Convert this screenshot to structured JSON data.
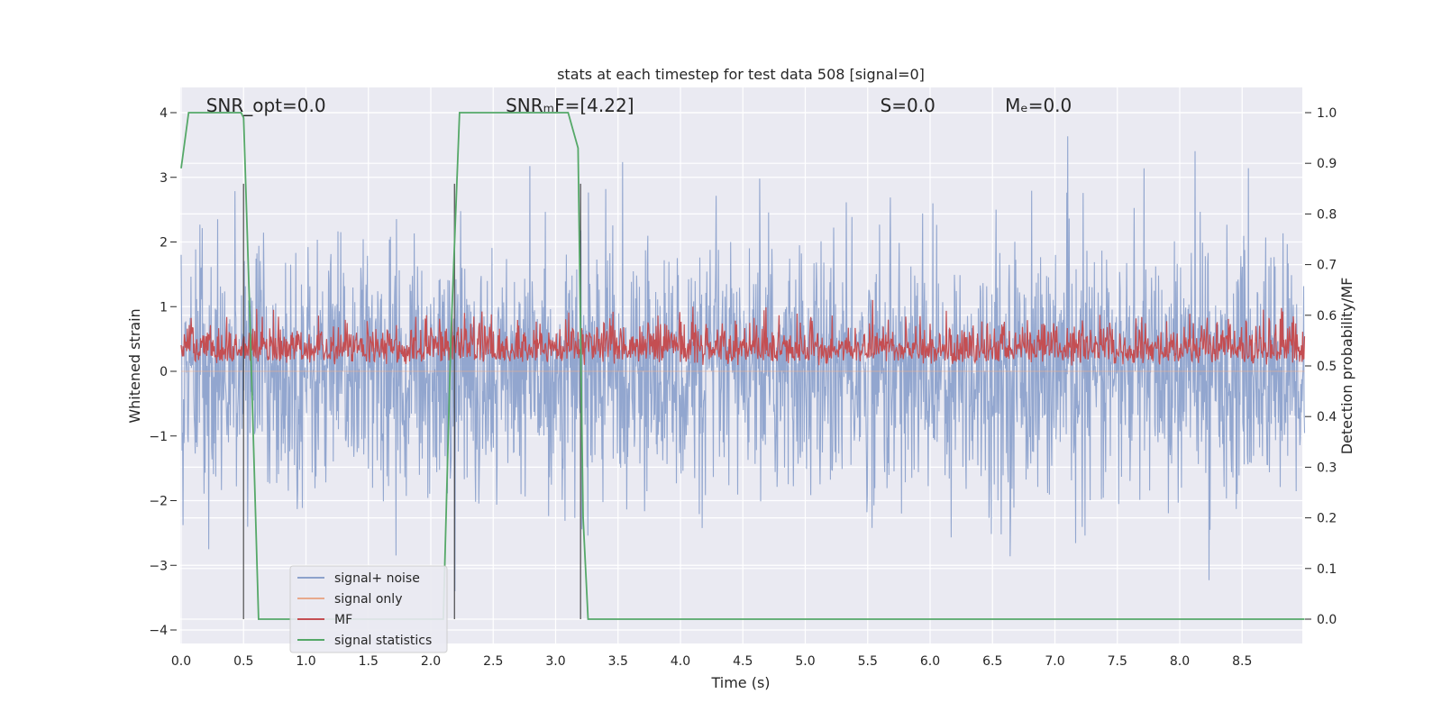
{
  "chart_data": {
    "type": "line",
    "title": "stats at each timestep for test data 508 [signal=0]",
    "xlabel": "Time (s)",
    "ylabel_left": "Whitened strain",
    "ylabel_right": "Detection probability/MF",
    "xlim": [
      0.0,
      9.0
    ],
    "ylim_left": [
      -4.3,
      4.4
    ],
    "ylim_right": [
      -0.05,
      1.05
    ],
    "grid": true,
    "legend_position": "lower-left",
    "xticks": [
      "0.0",
      "0.5",
      "1.0",
      "1.5",
      "2.0",
      "2.5",
      "3.0",
      "3.5",
      "4.0",
      "4.5",
      "5.0",
      "5.5",
      "6.0",
      "6.5",
      "7.0",
      "7.5",
      "8.0",
      "8.5"
    ],
    "yticks_left": [
      "−4",
      "−3",
      "−2",
      "−1",
      "0",
      "1",
      "2",
      "3",
      "4"
    ],
    "yticks_right": [
      "0.0",
      "0.1",
      "0.2",
      "0.3",
      "0.4",
      "0.5",
      "0.6",
      "0.7",
      "0.8",
      "0.9",
      "1.0"
    ],
    "annotations": [
      {
        "text": "SNR_opt=0.0",
        "x": 0.2
      },
      {
        "text": "SNRₘF=[4.22]",
        "x": 2.6
      },
      {
        "text": "S=0.0",
        "x": 5.6
      },
      {
        "text": "Mₑ=0.0",
        "x": 6.6
      }
    ],
    "vertical_markers_s": [
      0.5,
      2.19,
      3.2
    ],
    "series": [
      {
        "name": "signal+ noise",
        "axis": "left",
        "color": "#8da2cc",
        "style": "noise",
        "amplitude_peak": 4.0,
        "amplitude_min": -3.4,
        "typical_range": [
          -1.8,
          2.2
        ]
      },
      {
        "name": "signal only",
        "axis": "left",
        "color": "#e8a98c",
        "x": [
          0.0,
          9.0
        ],
        "y": [
          0.0,
          0.0
        ]
      },
      {
        "name": "MF",
        "axis": "right",
        "color": "#c44e52",
        "style": "noise",
        "typical_range": [
          0.5,
          0.62
        ],
        "peak": 0.63
      },
      {
        "name": "signal statistics",
        "axis": "right",
        "color": "#55a868",
        "x": [
          0.0,
          0.06,
          0.1,
          0.48,
          0.5,
          0.55,
          0.62,
          0.68,
          2.1,
          2.16,
          2.23,
          2.3,
          3.1,
          3.18,
          3.22,
          3.26,
          3.32,
          3.35,
          9.0
        ],
        "y": [
          0.89,
          1.0,
          1.0,
          1.0,
          0.99,
          0.6,
          0.0,
          0.0,
          0.0,
          0.55,
          1.0,
          1.0,
          1.0,
          0.93,
          0.2,
          0.0,
          0.0,
          0.0,
          0.0
        ]
      }
    ]
  }
}
